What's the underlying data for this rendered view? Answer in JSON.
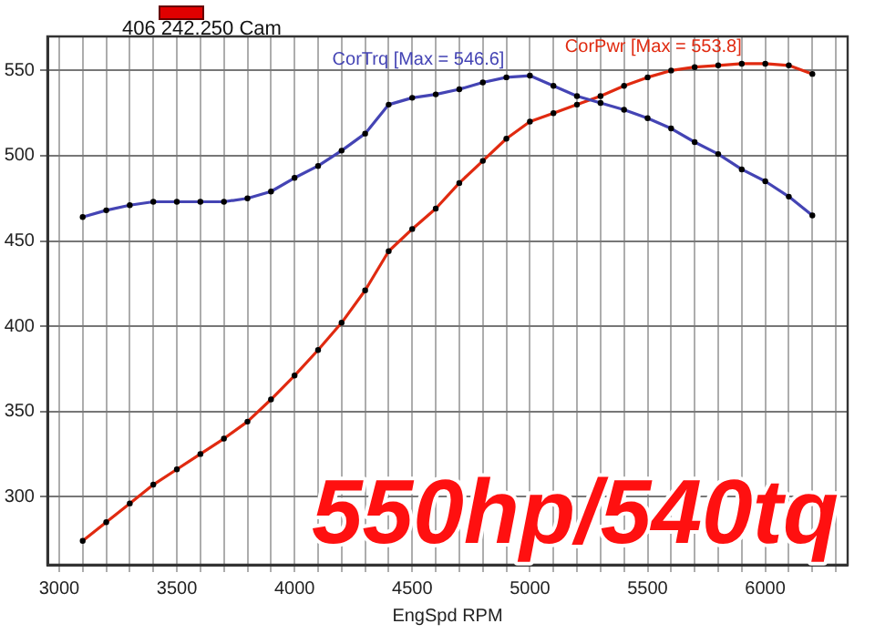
{
  "chart_data": {
    "type": "line",
    "title": "406 242.250 Cam",
    "xlabel": "EngSpd RPM",
    "x": [
      3100,
      3200,
      3300,
      3400,
      3500,
      3600,
      3700,
      3800,
      3900,
      4000,
      4100,
      4200,
      4300,
      4400,
      4500,
      4600,
      4700,
      4800,
      4900,
      5000,
      5100,
      5200,
      5300,
      5400,
      5500,
      5600,
      5700,
      5800,
      5900,
      6000,
      6100,
      6200
    ],
    "series": [
      {
        "name": "CorTrq [Max = 546.6]",
        "color": "#4444b4",
        "values": [
          464,
          468,
          471,
          473,
          473,
          473,
          473,
          475,
          479,
          487,
          494,
          503,
          513,
          530,
          534,
          536,
          539,
          543,
          546,
          547,
          541,
          535,
          531,
          527,
          522,
          516,
          508,
          501,
          492,
          485,
          476,
          465
        ]
      },
      {
        "name": "CorPwr [Max = 553.8]",
        "color": "#e02a10",
        "values": [
          274,
          285,
          296,
          307,
          316,
          325,
          334,
          344,
          357,
          371,
          386,
          402,
          421,
          444,
          457,
          469,
          484,
          497,
          510,
          520,
          525,
          530,
          535,
          541,
          546,
          550,
          552,
          553,
          554,
          554,
          553,
          548
        ]
      }
    ],
    "xlim": [
      2950,
      6350
    ],
    "xticks": [
      3000,
      {
        "value": 3100,
        "label": null
      },
      {
        "value": 3200,
        "label": null
      },
      {
        "value": 3300,
        "label": null
      },
      {
        "value": 3400,
        "label": null
      },
      3500,
      {
        "value": 3600,
        "label": null
      },
      {
        "value": 3700,
        "label": null
      },
      {
        "value": 3800,
        "label": null
      },
      {
        "value": 3900,
        "label": null
      },
      4000,
      {
        "value": 4100,
        "label": null
      },
      {
        "value": 4200,
        "label": null
      },
      {
        "value": 4300,
        "label": null
      },
      {
        "value": 4400,
        "label": null
      },
      4500,
      {
        "value": 4600,
        "label": null
      },
      {
        "value": 4700,
        "label": null
      },
      {
        "value": 4800,
        "label": null
      },
      {
        "value": 4900,
        "label": null
      },
      5000,
      {
        "value": 5100,
        "label": null
      },
      {
        "value": 5200,
        "label": null
      },
      {
        "value": 5300,
        "label": null
      },
      {
        "value": 5400,
        "label": null
      },
      5500,
      {
        "value": 5600,
        "label": null
      },
      {
        "value": 5700,
        "label": null
      },
      {
        "value": 5800,
        "label": null
      },
      {
        "value": 5900,
        "label": null
      },
      6000,
      {
        "value": 6100,
        "label": null
      },
      {
        "value": 6200,
        "label": null
      },
      {
        "value": 6300,
        "label": null
      }
    ],
    "ylim": [
      260,
      570
    ],
    "yticks": [
      300,
      350,
      400,
      450,
      500,
      550
    ],
    "grid": true,
    "marker": "circle",
    "line_style": "solid",
    "legend": false,
    "annotations": [
      "550hp/540tq"
    ]
  }
}
